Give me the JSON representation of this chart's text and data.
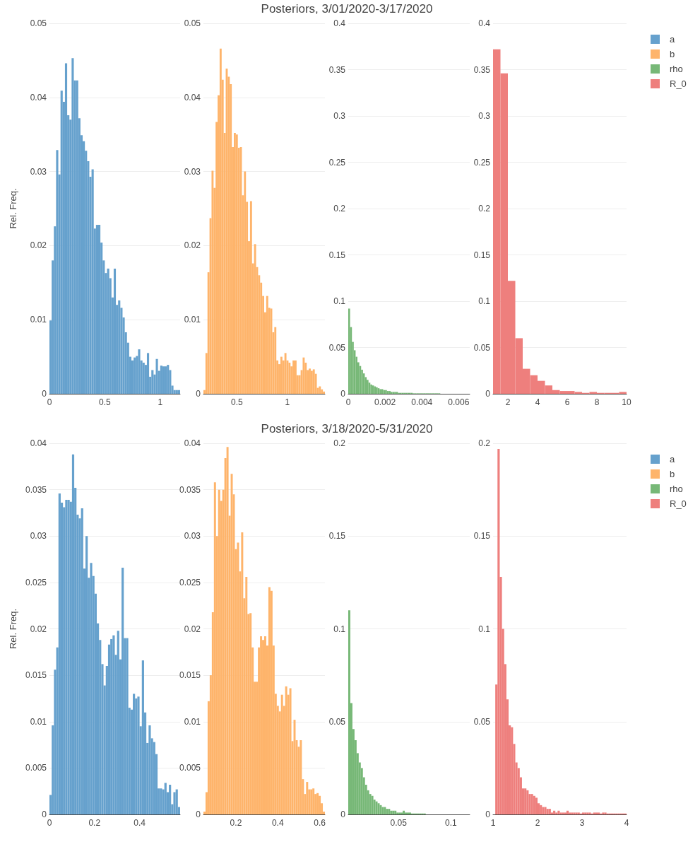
{
  "chart_data": [
    {
      "type": "histogram",
      "ylabel": "Rel. Freq.",
      "legend": "top right",
      "grid": "y",
      "bins": [
        0,
        0.02,
        0.04,
        0.06,
        0.08,
        0.1,
        0.12,
        0.14,
        0.16,
        0.18,
        0.2,
        0.22,
        0.24,
        0.26,
        0.28,
        0.3,
        0.32,
        0.34,
        0.36,
        0.38,
        0.4,
        0.42,
        0.44,
        0.46,
        0.48,
        0.5,
        0.52,
        0.54,
        0.56,
        0.58,
        0.6,
        0.62,
        0.64,
        0.66,
        0.68,
        0.7,
        0.72,
        0.74,
        0.76,
        0.78,
        0.8,
        0.82,
        0.84,
        0.86,
        0.88,
        0.9,
        0.92,
        0.94,
        0.96,
        0.98,
        1,
        1.02,
        1.04,
        1.06,
        1.08,
        1.1,
        1.12,
        1.14,
        1.16,
        1.18
      ],
      "series": [
        {
          "name": "a",
          "color": "#66a1cd",
          "values": [
            0.0099,
            0.018,
            0.0226,
            0.0329,
            0.0296,
            0.0409,
            0.0394,
            0.0446,
            0.0376,
            0.037,
            0.0453,
            0.0423,
            0.0423,
            0.0372,
            0.0349,
            0.0341,
            0.0328,
            0.0314,
            0.0293,
            0.0303,
            0.0223,
            0.0228,
            0.0228,
            0.0204,
            0.018,
            0.0163,
            0.0169,
            0.0156,
            0.013,
            0.0169,
            0.012,
            0.0126,
            0.0116,
            0.0103,
            0.0083,
            0.0069,
            0.005,
            0.0045,
            0.0049,
            0.0051,
            0.006,
            0.0045,
            0.0042,
            0.0039,
            0.0055,
            0.0023,
            0.0032,
            0.0026,
            0.0047,
            0.0031,
            0.0038,
            0.0037,
            0.0037,
            0.0039,
            0.0032,
            0.0011,
            0.0005,
            0.0005,
            0.0005
          ]
        }
      ],
      "xlim": [
        0,
        1.18
      ],
      "xticks": [
        0,
        0.5,
        1
      ],
      "ylim": [
        0,
        0.05
      ],
      "yticks": [
        0,
        0.01,
        0.02,
        0.03,
        0.04,
        0.05
      ]
    },
    {
      "type": "histogram",
      "legend": "top right",
      "grid": "y",
      "bins": [
        0.17,
        0.19,
        0.21,
        0.23,
        0.25,
        0.27,
        0.29,
        0.31,
        0.33,
        0.35,
        0.37,
        0.39,
        0.41,
        0.43,
        0.45,
        0.47,
        0.49,
        0.51,
        0.53,
        0.55,
        0.57,
        0.59,
        0.61,
        0.63,
        0.65,
        0.67,
        0.69,
        0.71,
        0.73,
        0.75,
        0.77,
        0.79,
        0.81,
        0.83,
        0.85,
        0.87,
        0.89,
        0.91,
        0.93,
        0.95,
        0.97,
        0.99,
        1.01,
        1.03,
        1.05,
        1.07,
        1.09,
        1.11,
        1.13,
        1.15,
        1.17,
        1.19,
        1.21,
        1.23,
        1.25,
        1.27,
        1.29,
        1.31,
        1.33,
        1.35,
        1.37
      ],
      "series": [
        {
          "name": "b",
          "color": "#feb46b",
          "values": [
            0.0005,
            0.0055,
            0.0164,
            0.0237,
            0.0301,
            0.0278,
            0.0367,
            0.0403,
            0.0466,
            0.0424,
            0.0352,
            0.0439,
            0.0428,
            0.0418,
            0.0333,
            0.0352,
            0.035,
            0.0332,
            0.0333,
            0.0268,
            0.03,
            0.0259,
            0.0206,
            0.026,
            0.0176,
            0.0202,
            0.0171,
            0.016,
            0.015,
            0.0132,
            0.011,
            0.0132,
            0.0116,
            0.0115,
            0.0083,
            0.009,
            0.0045,
            0.004,
            0.005,
            0.0045,
            0.0055,
            0.0045,
            0.0042,
            0.0037,
            0.0045,
            0.0045,
            0.0025,
            0.0025,
            0.0032,
            0.0049,
            0.0042,
            0.0032,
            0.0034,
            0.0031,
            0.0033,
            0.0027,
            0.0008,
            0.001,
            0.0006,
            0.0003
          ]
        }
      ],
      "xlim": [
        0.17,
        1.37
      ],
      "xticks": [
        0.5,
        1
      ],
      "ylim": [
        0,
        0.05
      ],
      "yticks": [
        0,
        0.01,
        0.02,
        0.03,
        0.04,
        0.05
      ]
    },
    {
      "type": "histogram",
      "title": "Posteriors, 3/01/2020-3/17/2020",
      "legend": "top right",
      "grid": "y",
      "bins": [
        0,
        0.0001,
        0.0002,
        0.0003,
        0.0004,
        0.0005,
        0.0006,
        0.0007,
        0.0008,
        0.0009,
        0.001,
        0.0011,
        0.0012,
        0.0013,
        0.0014,
        0.0015,
        0.0016,
        0.0017,
        0.0018,
        0.0019,
        0.002,
        0.0021,
        0.0022,
        0.0023,
        0.0024,
        0.0025,
        0.0026,
        0.0027,
        0.0028,
        0.0029,
        0.003,
        0.0031,
        0.0032,
        0.0033,
        0.0034,
        0.0035,
        0.0036,
        0.0037,
        0.0038,
        0.0039,
        0.004,
        0.0041,
        0.0042,
        0.0043,
        0.0044,
        0.0045,
        0.0046,
        0.0047,
        0.0048,
        0.0049,
        0.005
      ],
      "series": [
        {
          "name": "rho",
          "color": "#77b877",
          "values": [
            0.092,
            0.072,
            0.056,
            0.047,
            0.04,
            0.034,
            0.03,
            0.026,
            0.022,
            0.018,
            0.015,
            0.012,
            0.01,
            0.009,
            0.008,
            0.007,
            0.006,
            0.005,
            0.005,
            0.004,
            0.004,
            0.003,
            0.003,
            0.002,
            0.002,
            0.002,
            0.002,
            0.001,
            0.001,
            0.001,
            0.001,
            0.001,
            0.001,
            0.001,
            0.001,
            0.0005,
            0.0005,
            0.0005,
            0.0005,
            0.0005,
            0.0005,
            0.0005,
            0.0005,
            0.0005,
            0.0005,
            0.0005,
            0.0005,
            0.0005,
            0.0005,
            0.0005
          ]
        }
      ],
      "xlim": [
        0,
        0.0066
      ],
      "xticks": [
        0,
        0.002,
        0.004,
        0.006
      ],
      "ylim": [
        0,
        0.4
      ],
      "yticks": [
        0,
        0.05,
        0.1,
        0.15,
        0.2,
        0.25,
        0.3,
        0.35,
        0.4
      ]
    },
    {
      "type": "histogram",
      "legend": "top right",
      "grid": "y",
      "bins": [
        1,
        1.5,
        2,
        2.5,
        3,
        3.5,
        4,
        4.5,
        5,
        5.5,
        6,
        6.5,
        7,
        7.5,
        8,
        8.5,
        9,
        9.5,
        10
      ],
      "series": [
        {
          "name": "R_0",
          "color": "#ee7f7d",
          "values": [
            0.372,
            0.346,
            0.122,
            0.06,
            0.027,
            0.02,
            0.014,
            0.009,
            0.004,
            0.003,
            0.003,
            0.002,
            0.001,
            0.002,
            0.001,
            0.001,
            0.001,
            0.002
          ]
        }
      ],
      "xlim": [
        1,
        10
      ],
      "xticks": [
        2,
        4,
        6,
        8,
        10
      ],
      "ylim": [
        0,
        0.4
      ],
      "yticks": [
        0,
        0.05,
        0.1,
        0.15,
        0.2,
        0.25,
        0.3,
        0.35,
        0.4
      ]
    },
    {
      "type": "histogram",
      "ylabel": "Rel. Freq.",
      "legend": "top right",
      "grid": "y",
      "bins": [
        0,
        0.01,
        0.02,
        0.03,
        0.04,
        0.05,
        0.06,
        0.07,
        0.08,
        0.09,
        0.1,
        0.11,
        0.12,
        0.13,
        0.14,
        0.15,
        0.16,
        0.17,
        0.18,
        0.19,
        0.2,
        0.21,
        0.22,
        0.23,
        0.24,
        0.25,
        0.26,
        0.27,
        0.28,
        0.29,
        0.3,
        0.31,
        0.32,
        0.33,
        0.34,
        0.35,
        0.36,
        0.37,
        0.38,
        0.39,
        0.4,
        0.41,
        0.42,
        0.43,
        0.44,
        0.45,
        0.46,
        0.47,
        0.48,
        0.49,
        0.5,
        0.51,
        0.52,
        0.53,
        0.54,
        0.55,
        0.56,
        0.57,
        0.58
      ],
      "series": [
        {
          "name": "a",
          "color": "#66a1cd",
          "values": [
            0.0021,
            0.0096,
            0.0156,
            0.018,
            0.0346,
            0.0336,
            0.0331,
            0.0339,
            0.0339,
            0.0337,
            0.0388,
            0.0352,
            0.0323,
            0.0319,
            0.033,
            0.0265,
            0.03,
            0.0255,
            0.0271,
            0.0257,
            0.0238,
            0.0206,
            0.0188,
            0.0162,
            0.0139,
            0.016,
            0.0183,
            0.0189,
            0.0193,
            0.0172,
            0.0198,
            0.0167,
            0.0266,
            0.019,
            0.019,
            0.0115,
            0.0113,
            0.013,
            0.0125,
            0.0127,
            0.0095,
            0.0166,
            0.011,
            0.0077,
            0.0096,
            0.0082,
            0.0078,
            0.0065,
            0.0028,
            0.0028,
            0.0027,
            0.0034,
            0.0024,
            0.0032,
            0.0011,
            0.0024,
            0.0027,
            0.0008
          ]
        }
      ],
      "xlim": [
        0,
        0.58
      ],
      "xticks": [
        0,
        0.2,
        0.4
      ],
      "ylim": [
        0,
        0.04
      ],
      "yticks": [
        0,
        0.005,
        0.01,
        0.015,
        0.02,
        0.025,
        0.03,
        0.035,
        0.04
      ]
    },
    {
      "type": "histogram",
      "legend": "top right",
      "grid": "y",
      "bins": [
        0.045,
        0.055,
        0.065,
        0.075,
        0.085,
        0.095,
        0.105,
        0.115,
        0.125,
        0.135,
        0.145,
        0.155,
        0.165,
        0.175,
        0.185,
        0.195,
        0.205,
        0.215,
        0.225,
        0.235,
        0.245,
        0.255,
        0.265,
        0.275,
        0.285,
        0.295,
        0.305,
        0.315,
        0.325,
        0.335,
        0.345,
        0.355,
        0.365,
        0.375,
        0.385,
        0.395,
        0.405,
        0.415,
        0.425,
        0.435,
        0.445,
        0.455,
        0.465,
        0.475,
        0.485,
        0.495,
        0.505,
        0.515,
        0.525,
        0.535,
        0.545,
        0.555,
        0.565,
        0.575,
        0.585,
        0.595,
        0.605,
        0.615,
        0.625
      ],
      "series": [
        {
          "name": "b",
          "color": "#feb46b",
          "values": [
            0.0003,
            0.0024,
            0.0122,
            0.015,
            0.0218,
            0.0358,
            0.03,
            0.035,
            0.0338,
            0.035,
            0.0384,
            0.0396,
            0.0322,
            0.0367,
            0.0345,
            0.0286,
            0.0293,
            0.0262,
            0.0304,
            0.0233,
            0.0256,
            0.0216,
            0.0217,
            0.018,
            0.0143,
            0.0143,
            0.018,
            0.0192,
            0.0188,
            0.0192,
            0.0182,
            0.0245,
            0.0241,
            0.0182,
            0.013,
            0.0117,
            0.0111,
            0.0129,
            0.0117,
            0.0138,
            0.0129,
            0.0136,
            0.0079,
            0.0102,
            0.008,
            0.0073,
            0.008,
            0.0038,
            0.0022,
            0.0035,
            0.0027,
            0.0027,
            0.0028,
            0.0022,
            0.0023,
            0.002,
            0.0012,
            0.0003
          ]
        }
      ],
      "xlim": [
        0.045,
        0.625
      ],
      "xticks": [
        0.2,
        0.4,
        0.6
      ],
      "ylim": [
        0,
        0.04
      ],
      "yticks": [
        0,
        0.005,
        0.01,
        0.015,
        0.02,
        0.025,
        0.03,
        0.035,
        0.04
      ]
    },
    {
      "type": "histogram",
      "title": "Posteriors, 3/18/2020-5/31/2020",
      "legend": "top right",
      "grid": "y",
      "bins": [
        0.002,
        0.004,
        0.006,
        0.008,
        0.01,
        0.012,
        0.014,
        0.016,
        0.018,
        0.02,
        0.022,
        0.024,
        0.026,
        0.028,
        0.03,
        0.032,
        0.034,
        0.036,
        0.038,
        0.04,
        0.042,
        0.044,
        0.046,
        0.048,
        0.05,
        0.052,
        0.054,
        0.056,
        0.058,
        0.06,
        0.062,
        0.064,
        0.066,
        0.068,
        0.07,
        0.072,
        0.074,
        0.076
      ],
      "series": [
        {
          "name": "rho",
          "color": "#77b877",
          "values": [
            0.11,
            0.06,
            0.046,
            0.04,
            0.033,
            0.028,
            0.025,
            0.02,
            0.016,
            0.013,
            0.011,
            0.01,
            0.008,
            0.007,
            0.006,
            0.005,
            0.004,
            0.004,
            0.003,
            0.003,
            0.002,
            0.002,
            0.002,
            0.001,
            0.001,
            0.001,
            0.002,
            0.001,
            0.001,
            0.001,
            0.0005,
            0.0005,
            0.0005,
            0.0005,
            0.0005,
            0.0005,
            0.0005
          ]
        }
      ],
      "xlim": [
        0.002,
        0.118
      ],
      "xticks": [
        0.05,
        0.1
      ],
      "ylim": [
        0,
        0.2
      ],
      "yticks": [
        0,
        0.05,
        0.1,
        0.15,
        0.2
      ]
    },
    {
      "type": "histogram",
      "legend": "top right",
      "grid": "y",
      "bins": [
        1.05,
        1.1,
        1.15,
        1.2,
        1.25,
        1.3,
        1.35,
        1.4,
        1.45,
        1.5,
        1.55,
        1.6,
        1.65,
        1.7,
        1.75,
        1.8,
        1.85,
        1.9,
        1.95,
        2,
        2.05,
        2.1,
        2.15,
        2.2,
        2.25,
        2.3,
        2.35,
        2.4,
        2.45,
        2.5,
        2.55,
        2.6,
        2.65,
        2.7,
        2.75,
        2.8,
        2.85,
        2.9,
        2.95,
        3,
        3.05,
        3.1,
        3.15,
        3.2,
        3.25,
        3.3,
        3.35,
        3.4,
        3.45,
        3.5,
        3.55,
        3.6,
        3.65,
        3.7,
        3.75,
        3.8,
        3.85,
        3.9,
        3.95,
        4
      ],
      "series": [
        {
          "name": "R_0",
          "color": "#ee7f7d",
          "values": [
            0.07,
            0.197,
            0.128,
            0.1,
            0.081,
            0.062,
            0.048,
            0.047,
            0.038,
            0.028,
            0.025,
            0.02,
            0.014,
            0.014,
            0.013,
            0.011,
            0.011,
            0.01,
            0.009,
            0.006,
            0.005,
            0.004,
            0.004,
            0.003,
            0.003,
            0.001,
            0.002,
            0.001,
            0.002,
            0.001,
            0.001,
            0.001,
            0.002,
            0.001,
            0.001,
            0.001,
            0.001,
            0.001,
            0.0005,
            0.001,
            0.001,
            0.001,
            0.001,
            0.0005,
            0.001,
            0.001,
            0.001,
            0.0005,
            0.001,
            0.001,
            0.0005,
            0.0005,
            0.0005,
            0.0005,
            0.0005,
            0.0005,
            0.0005,
            0.0005,
            0.0005
          ]
        }
      ],
      "xlim": [
        1,
        4
      ],
      "xticks": [
        1,
        2,
        3,
        4
      ],
      "ylim": [
        0,
        0.2
      ],
      "yticks": [
        0,
        0.05,
        0.1,
        0.15,
        0.2
      ]
    }
  ]
}
